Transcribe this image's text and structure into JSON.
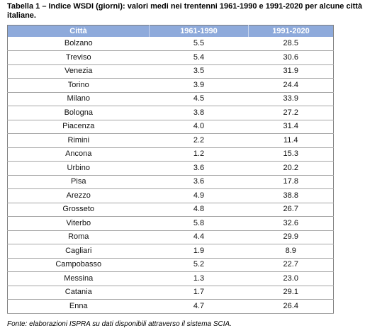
{
  "title": "Tabella 1 – Indice WSDI (giorni): valori medi nei trentenni 1961-1990 e 1991-2020 per alcune città italiane.",
  "table": {
    "columns": [
      "Città",
      "1961-1990",
      "1991-2020"
    ],
    "rows": [
      [
        "Bolzano",
        "5.5",
        "28.5"
      ],
      [
        "Treviso",
        "5.4",
        "30.6"
      ],
      [
        "Venezia",
        "3.5",
        "31.9"
      ],
      [
        "Torino",
        "3.9",
        "24.4"
      ],
      [
        "Milano",
        "4.5",
        "33.9"
      ],
      [
        "Bologna",
        "3.8",
        "27.2"
      ],
      [
        "Piacenza",
        "4.0",
        "31.4"
      ],
      [
        "Rimini",
        "2.2",
        "11.4"
      ],
      [
        "Ancona",
        "1.2",
        "15.3"
      ],
      [
        "Urbino",
        "3.6",
        "20.2"
      ],
      [
        "Pisa",
        "3.6",
        "17.8"
      ],
      [
        "Arezzo",
        "4.9",
        "38.8"
      ],
      [
        "Grosseto",
        "4.8",
        "26.7"
      ],
      [
        "Viterbo",
        "5.8",
        "32.6"
      ],
      [
        "Roma",
        "4.4",
        "29.9"
      ],
      [
        "Cagliari",
        "1.9",
        "8.9"
      ],
      [
        "Campobasso",
        "5.2",
        "22.7"
      ],
      [
        "Messina",
        "1.3",
        "23.0"
      ],
      [
        "Catania",
        "1.7",
        "29.1"
      ],
      [
        "Enna",
        "4.7",
        "26.4"
      ]
    ]
  },
  "source": "Fonte: elaborazioni ISPRA su dati disponibili attraverso il sistema SCIA.",
  "colors": {
    "header_bg": "#8eaadb",
    "header_text": "#ffffff"
  }
}
